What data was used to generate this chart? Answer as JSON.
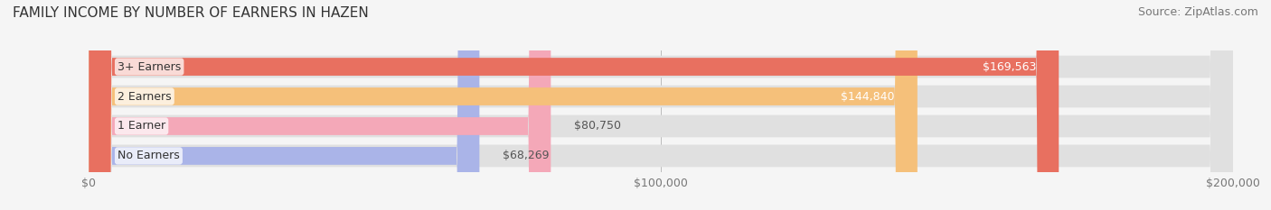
{
  "title": "FAMILY INCOME BY NUMBER OF EARNERS IN HAZEN",
  "source": "Source: ZipAtlas.com",
  "categories": [
    "No Earners",
    "1 Earner",
    "2 Earners",
    "3+ Earners"
  ],
  "values": [
    68269,
    80750,
    144840,
    169563
  ],
  "bar_colors": [
    "#aab4e8",
    "#f4a8b8",
    "#f5c07a",
    "#e87060"
  ],
  "label_colors": [
    "#555555",
    "#555555",
    "#ffffff",
    "#ffffff"
  ],
  "xlim": [
    0,
    200000
  ],
  "xticks": [
    0,
    100000,
    200000
  ],
  "xtick_labels": [
    "$0",
    "$100,000",
    "$200,000"
  ],
  "background_color": "#f5f5f5",
  "bar_background_color": "#e0e0e0",
  "title_fontsize": 11,
  "source_fontsize": 9,
  "tick_fontsize": 9,
  "label_fontsize": 9,
  "bar_label_fontsize": 9
}
